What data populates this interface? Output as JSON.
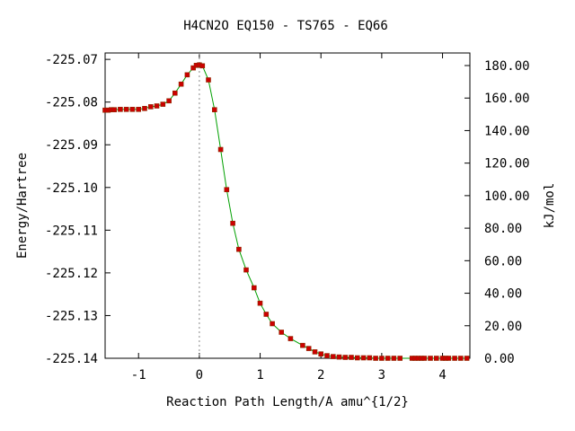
{
  "chart_data": {
    "type": "line",
    "title": "H4CN2O   EQ150 - TS765 - EQ66",
    "xlabel": "Reaction Path Length/A amu^{1/2}",
    "ylabel_left": "Energy/Hartree",
    "ylabel_right": "kJ/mol",
    "xlim": [
      -1.55,
      4.45
    ],
    "ylim": [
      -225.14,
      -225.0685
    ],
    "x_ticks": [
      -1,
      0,
      1,
      2,
      3,
      4
    ],
    "x_tick_labels": [
      "-1",
      "0",
      "1",
      "2",
      "3",
      "4"
    ],
    "y_ticks_left": [
      -225.07,
      -225.08,
      -225.09,
      -225.1,
      -225.11,
      -225.12,
      -225.13,
      -225.14
    ],
    "y_tick_labels_left": [
      "-225.07",
      "-225.08",
      "-225.09",
      "-225.10",
      "-225.11",
      "-225.12",
      "-225.13",
      "-225.14"
    ],
    "y_ticks_right_kjmol": [
      0,
      20,
      40,
      60,
      80,
      100,
      120,
      140,
      160,
      180
    ],
    "y_tick_labels_right": [
      "0.00",
      "20.00",
      "40.00",
      "60.00",
      "80.00",
      "100.00",
      "120.00",
      "140.00",
      "160.00",
      "180.00"
    ],
    "ts_x": 0,
    "colors": {
      "line": "#00a000",
      "points": "#cc0000",
      "ts_marker": "#888888"
    },
    "points": {
      "x": [
        -1.55,
        -1.5,
        -1.45,
        -1.4,
        -1.3,
        -1.2,
        -1.1,
        -1.0,
        -0.9,
        -0.8,
        -0.7,
        -0.6,
        -0.5,
        -0.4,
        -0.3,
        -0.2,
        -0.1,
        -0.05,
        0.0,
        0.05,
        0.15,
        0.25,
        0.35,
        0.45,
        0.55,
        0.65,
        0.77,
        0.9,
        1.0,
        1.1,
        1.2,
        1.35,
        1.5,
        1.7,
        1.8,
        1.9,
        2.0,
        2.1,
        2.2,
        2.3,
        2.4,
        2.5,
        2.6,
        2.7,
        2.8,
        2.9,
        3.0,
        3.1,
        3.2,
        3.3,
        3.5,
        3.55,
        3.6,
        3.65,
        3.7,
        3.8,
        3.9,
        4.0,
        4.05,
        4.1,
        4.2,
        4.3,
        4.4
      ],
      "y": [
        -225.0819,
        -225.0819,
        -225.0818,
        -225.0818,
        -225.0817,
        -225.0817,
        -225.0817,
        -225.0817,
        -225.0815,
        -225.0811,
        -225.0809,
        -225.0805,
        -225.0797,
        -225.0779,
        -225.0758,
        -225.0736,
        -225.072,
        -225.0714,
        -225.0713,
        -225.0715,
        -225.0748,
        -225.0818,
        -225.0911,
        -225.1005,
        -225.1084,
        -225.1145,
        -225.1193,
        -225.1235,
        -225.1271,
        -225.1297,
        -225.1319,
        -225.1339,
        -225.1354,
        -225.137,
        -225.1377,
        -225.1385,
        -225.139,
        -225.1394,
        -225.1396,
        -225.1397,
        -225.1398,
        -225.1398,
        -225.1399,
        -225.1399,
        -225.1399,
        -225.14,
        -225.14,
        -225.14,
        -225.14,
        -225.14,
        -225.14,
        -225.14,
        -225.14,
        -225.14,
        -225.14,
        -225.14,
        -225.14,
        -225.14,
        -225.14,
        -225.14,
        -225.14,
        -225.14,
        -225.14
      ]
    }
  }
}
